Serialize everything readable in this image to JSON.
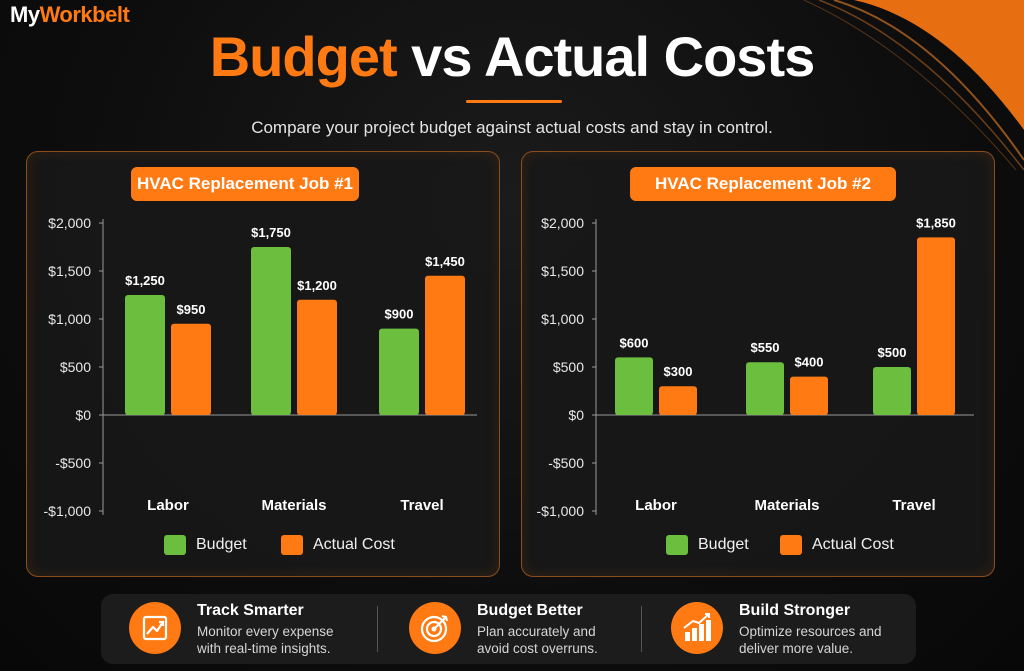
{
  "brand": {
    "logo_part1": "My",
    "logo_part2": "Workbelt"
  },
  "header": {
    "title_part1": "Budget",
    "title_part2": "vs Actual Costs",
    "subtitle": "Compare your project budget against actual costs and stay in control."
  },
  "colors": {
    "budget": "#6cbf3e",
    "actual": "#ff7a12",
    "accent": "#ff7a12"
  },
  "legend": {
    "budget_label": "Budget",
    "actual_label": "Actual Cost"
  },
  "chart_data": [
    {
      "type": "bar",
      "title": "HVAC Replacement Job #1",
      "categories": [
        "Labor",
        "Materials",
        "Travel"
      ],
      "series": [
        {
          "name": "Budget",
          "values": [
            1250,
            1750,
            900
          ]
        },
        {
          "name": "Actual Cost",
          "values": [
            950,
            1200,
            1450
          ]
        }
      ],
      "value_labels": [
        [
          "$1,250",
          "$1,750",
          "$900"
        ],
        [
          "$950",
          "$1,200",
          "$1,450"
        ]
      ],
      "yticks": [
        2000,
        1500,
        1000,
        500,
        0,
        -500,
        -1000
      ],
      "ytick_labels": [
        "$2,000",
        "$1,500",
        "$1,000",
        "$500",
        "$0",
        "-$500",
        "-$1,000"
      ],
      "ylim": [
        -1000,
        2000
      ],
      "legend_position": "bottom",
      "grid": false
    },
    {
      "type": "bar",
      "title": "HVAC Replacement Job #2",
      "categories": [
        "Labor",
        "Materials",
        "Travel"
      ],
      "series": [
        {
          "name": "Budget",
          "values": [
            600,
            550,
            500
          ]
        },
        {
          "name": "Actual Cost",
          "values": [
            300,
            400,
            1850
          ]
        }
      ],
      "value_labels": [
        [
          "$600",
          "$550",
          "$500"
        ],
        [
          "$300",
          "$400",
          "$1,850"
        ]
      ],
      "yticks": [
        2000,
        1500,
        1000,
        500,
        0,
        -500,
        -1000
      ],
      "ytick_labels": [
        "$2,000",
        "$1,500",
        "$1,000",
        "$500",
        "$0",
        "-$500",
        "-$1,000"
      ],
      "ylim": [
        -1000,
        2000
      ],
      "legend_position": "bottom",
      "grid": false
    }
  ],
  "features": [
    {
      "icon": "trend-chart-icon",
      "title": "Track Smarter",
      "line1": "Monitor every expense",
      "line2": "with real-time insights."
    },
    {
      "icon": "target-icon",
      "title": "Budget Better",
      "line1": "Plan accurately and",
      "line2": "avoid cost overruns."
    },
    {
      "icon": "growth-bars-icon",
      "title": "Build Stronger",
      "line1": "Optimize resources and",
      "line2": "deliver more value."
    }
  ]
}
